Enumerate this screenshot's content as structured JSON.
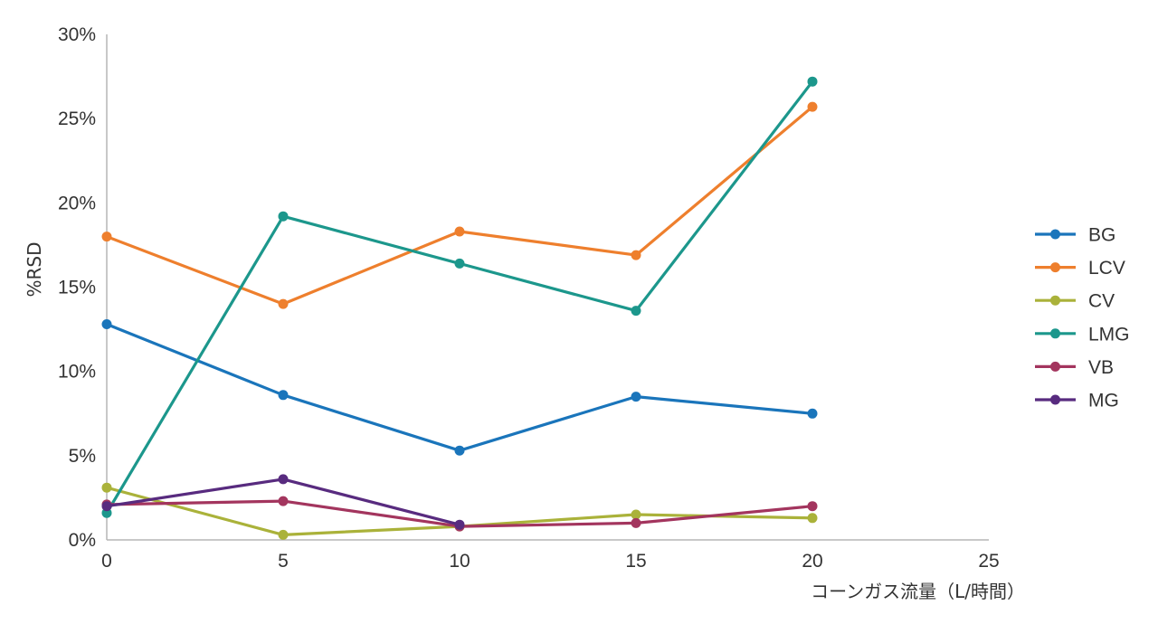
{
  "chart_data": {
    "type": "line",
    "xlabel": "コーンガス流量（L/時間）",
    "ylabel": "%RSD",
    "xlim": [
      0,
      25
    ],
    "ylim": [
      0,
      30
    ],
    "x_ticks": [
      "0",
      "5",
      "10",
      "15",
      "20",
      "25"
    ],
    "y_ticks": [
      "0%",
      "5%",
      "10%",
      "15%",
      "20%",
      "25%",
      "30%"
    ],
    "grid": false,
    "legend_position": "right",
    "x": [
      0,
      5,
      10,
      15,
      20
    ],
    "series": [
      {
        "name": "BG",
        "color": "#1a75bb",
        "values": [
          12.8,
          8.6,
          5.3,
          8.5,
          7.5
        ]
      },
      {
        "name": "LCV",
        "color": "#ee7f2d",
        "values": [
          18.0,
          14.0,
          18.3,
          16.9,
          25.7
        ]
      },
      {
        "name": "CV",
        "color": "#aab23a",
        "values": [
          3.1,
          0.3,
          0.8,
          1.5,
          1.3
        ]
      },
      {
        "name": "LMG",
        "color": "#1c978c",
        "values": [
          1.6,
          19.2,
          16.4,
          13.6,
          27.2
        ]
      },
      {
        "name": "VB",
        "color": "#a3355e",
        "values": [
          2.1,
          2.3,
          0.8,
          1.0,
          2.0
        ]
      },
      {
        "name": "MG",
        "color": "#582b7f",
        "values": [
          2.0,
          3.6,
          0.9,
          null,
          null
        ]
      }
    ]
  }
}
